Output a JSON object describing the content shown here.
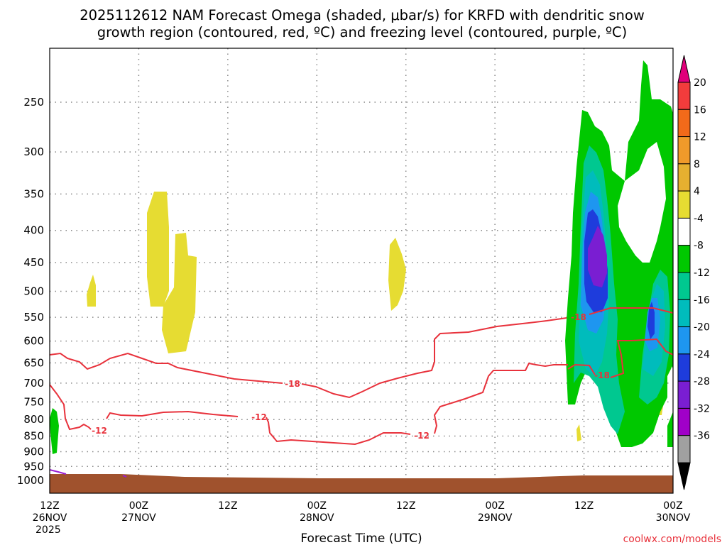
{
  "title_line1": "2025112612 NAM Forecast Omega (shaded, μbar/s) for KRFD with dendritic snow",
  "title_line2": "growth region (contoured, red, ºC) and freezing level (contoured, purple, ºC)",
  "credit": "coolwx.com/models",
  "chart_data": {
    "type": "contour-cross-section",
    "xlabel": "Forecast Time (UTC)",
    "x_ticks": [
      {
        "line1": "12Z",
        "line2": "26NOV",
        "line3": "2025"
      },
      {
        "line1": "00Z",
        "line2": "27NOV",
        "line3": ""
      },
      {
        "line1": "12Z",
        "line2": "",
        "line3": ""
      },
      {
        "line1": "00Z",
        "line2": "28NOV",
        "line3": ""
      },
      {
        "line1": "12Z",
        "line2": "",
        "line3": ""
      },
      {
        "line1": "00Z",
        "line2": "29NOV",
        "line3": ""
      },
      {
        "line1": "12Z",
        "line2": "",
        "line3": ""
      },
      {
        "line1": "00Z",
        "line2": "30NOV",
        "line3": ""
      }
    ],
    "y_ticks": [
      "250",
      "300",
      "350",
      "400",
      "450",
      "500",
      "550",
      "600",
      "650",
      "700",
      "750",
      "800",
      "850",
      "900",
      "950",
      "1000"
    ],
    "y_scale": "log-pressure",
    "grid": true,
    "colorbar": {
      "labels": [
        "20",
        "16",
        "12",
        "8",
        "4",
        "-4",
        "-8",
        "-12",
        "-16",
        "-20",
        "-24",
        "-28",
        "-32",
        "-36"
      ],
      "colors": [
        "#e0007a",
        "#f23c3c",
        "#f26a1a",
        "#f09a2a",
        "#e6b030",
        "#e6dc32",
        "#ffffff",
        "#00c800",
        "#00c890",
        "#00bcbc",
        "#1e96f0",
        "#1e3cdc",
        "#7a1ed2",
        "#a000c8",
        "#a0a0a0",
        "#000000"
      ]
    },
    "contour_labels": {
      "dgz": [
        "-18",
        "-18",
        "-12",
        "-12",
        "-18",
        "-12"
      ]
    }
  }
}
